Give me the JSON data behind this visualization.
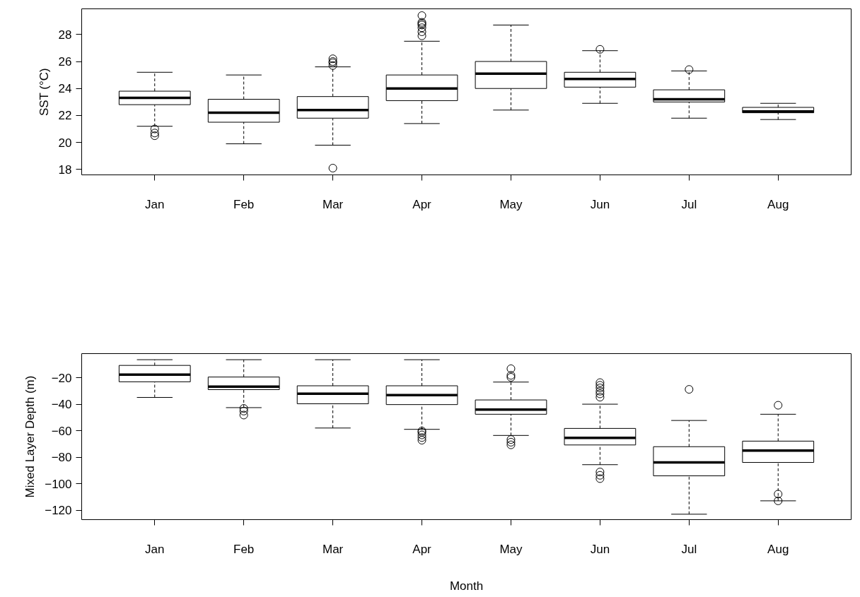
{
  "chart_data": [
    {
      "type": "box",
      "ylabel": "SST (°C)",
      "categories": [
        "Jan",
        "Feb",
        "Mar",
        "Apr",
        "May",
        "Jun",
        "Jul",
        "Aug"
      ],
      "ylim": [
        17.6,
        29.9
      ],
      "yticks": [
        18,
        20,
        22,
        24,
        26,
        28
      ],
      "boxes": [
        {
          "low": 21.2,
          "q1": 22.8,
          "median": 23.3,
          "q3": 23.8,
          "high": 25.2,
          "outliers": [
            21.0,
            20.7,
            20.5
          ]
        },
        {
          "low": 19.9,
          "q1": 21.5,
          "median": 22.2,
          "q3": 23.2,
          "high": 25.0
        },
        {
          "low": 19.8,
          "q1": 21.8,
          "median": 22.4,
          "q3": 23.4,
          "high": 25.6,
          "outliers": [
            18.1,
            25.7,
            25.9,
            26.0,
            26.2
          ]
        },
        {
          "low": 21.4,
          "q1": 23.1,
          "median": 24.0,
          "q3": 25.0,
          "high": 27.5,
          "outliers": [
            27.9,
            28.2,
            28.5,
            28.7,
            28.8,
            28.9,
            29.4
          ]
        },
        {
          "low": 22.4,
          "q1": 24.0,
          "median": 25.1,
          "q3": 26.0,
          "high": 28.7
        },
        {
          "low": 22.9,
          "q1": 24.1,
          "median": 24.7,
          "q3": 25.2,
          "high": 26.8,
          "outliers": [
            26.9
          ]
        },
        {
          "low": 21.8,
          "q1": 23.0,
          "median": 23.2,
          "q3": 23.9,
          "high": 25.3,
          "outliers": [
            25.4
          ]
        },
        {
          "low": 21.7,
          "q1": 22.2,
          "median": 22.3,
          "q3": 22.6,
          "high": 22.9
        }
      ]
    },
    {
      "type": "box",
      "ylabel": "Mixed Layer Depth (m)",
      "xlabel": "Month",
      "categories": [
        "Jan",
        "Feb",
        "Mar",
        "Apr",
        "May",
        "Jun",
        "Jul",
        "Aug"
      ],
      "ylim": [
        -127,
        -1.6
      ],
      "yticks": [
        -20,
        -40,
        -60,
        -80,
        -100,
        -120
      ],
      "boxes": [
        {
          "low": -34.7,
          "q1": -22.9,
          "median": -17.5,
          "q3": -10.5,
          "high": -6.2
        },
        {
          "low": -42.4,
          "q1": -28.8,
          "median": -26.5,
          "q3": -19.3,
          "high": -6.2,
          "outliers": [
            -43,
            -45,
            -48
          ]
        },
        {
          "low": -57.8,
          "q1": -39.5,
          "median": -31.9,
          "q3": -25.9,
          "high": -6.2
        },
        {
          "low": -58.8,
          "q1": -40.1,
          "median": -33.0,
          "q3": -25.9,
          "high": -6.2,
          "outliers": [
            -60,
            -61,
            -63,
            -65,
            -67
          ]
        },
        {
          "low": -63.4,
          "q1": -47.4,
          "median": -43.9,
          "q3": -36.6,
          "high": -23.1,
          "outliers": [
            -13,
            -18,
            -19.5,
            -66.5,
            -68.5,
            -70.5
          ]
        },
        {
          "low": -85.5,
          "q1": -70.6,
          "median": -65.3,
          "q3": -58.1,
          "high": -39.8,
          "outliers": [
            -23.5,
            -25.5,
            -27.5,
            -30,
            -32,
            -34.5,
            -91,
            -93.5,
            -96
          ]
        },
        {
          "low": -122.9,
          "q1": -93.9,
          "median": -83.8,
          "q3": -71.9,
          "high": -52.1,
          "outliers": [
            -28.6
          ]
        },
        {
          "low": -112.8,
          "q1": -83.8,
          "median": -74.8,
          "q3": -67.7,
          "high": -47.4,
          "outliers": [
            -40.6,
            -107.7,
            -112.8
          ]
        }
      ]
    }
  ]
}
